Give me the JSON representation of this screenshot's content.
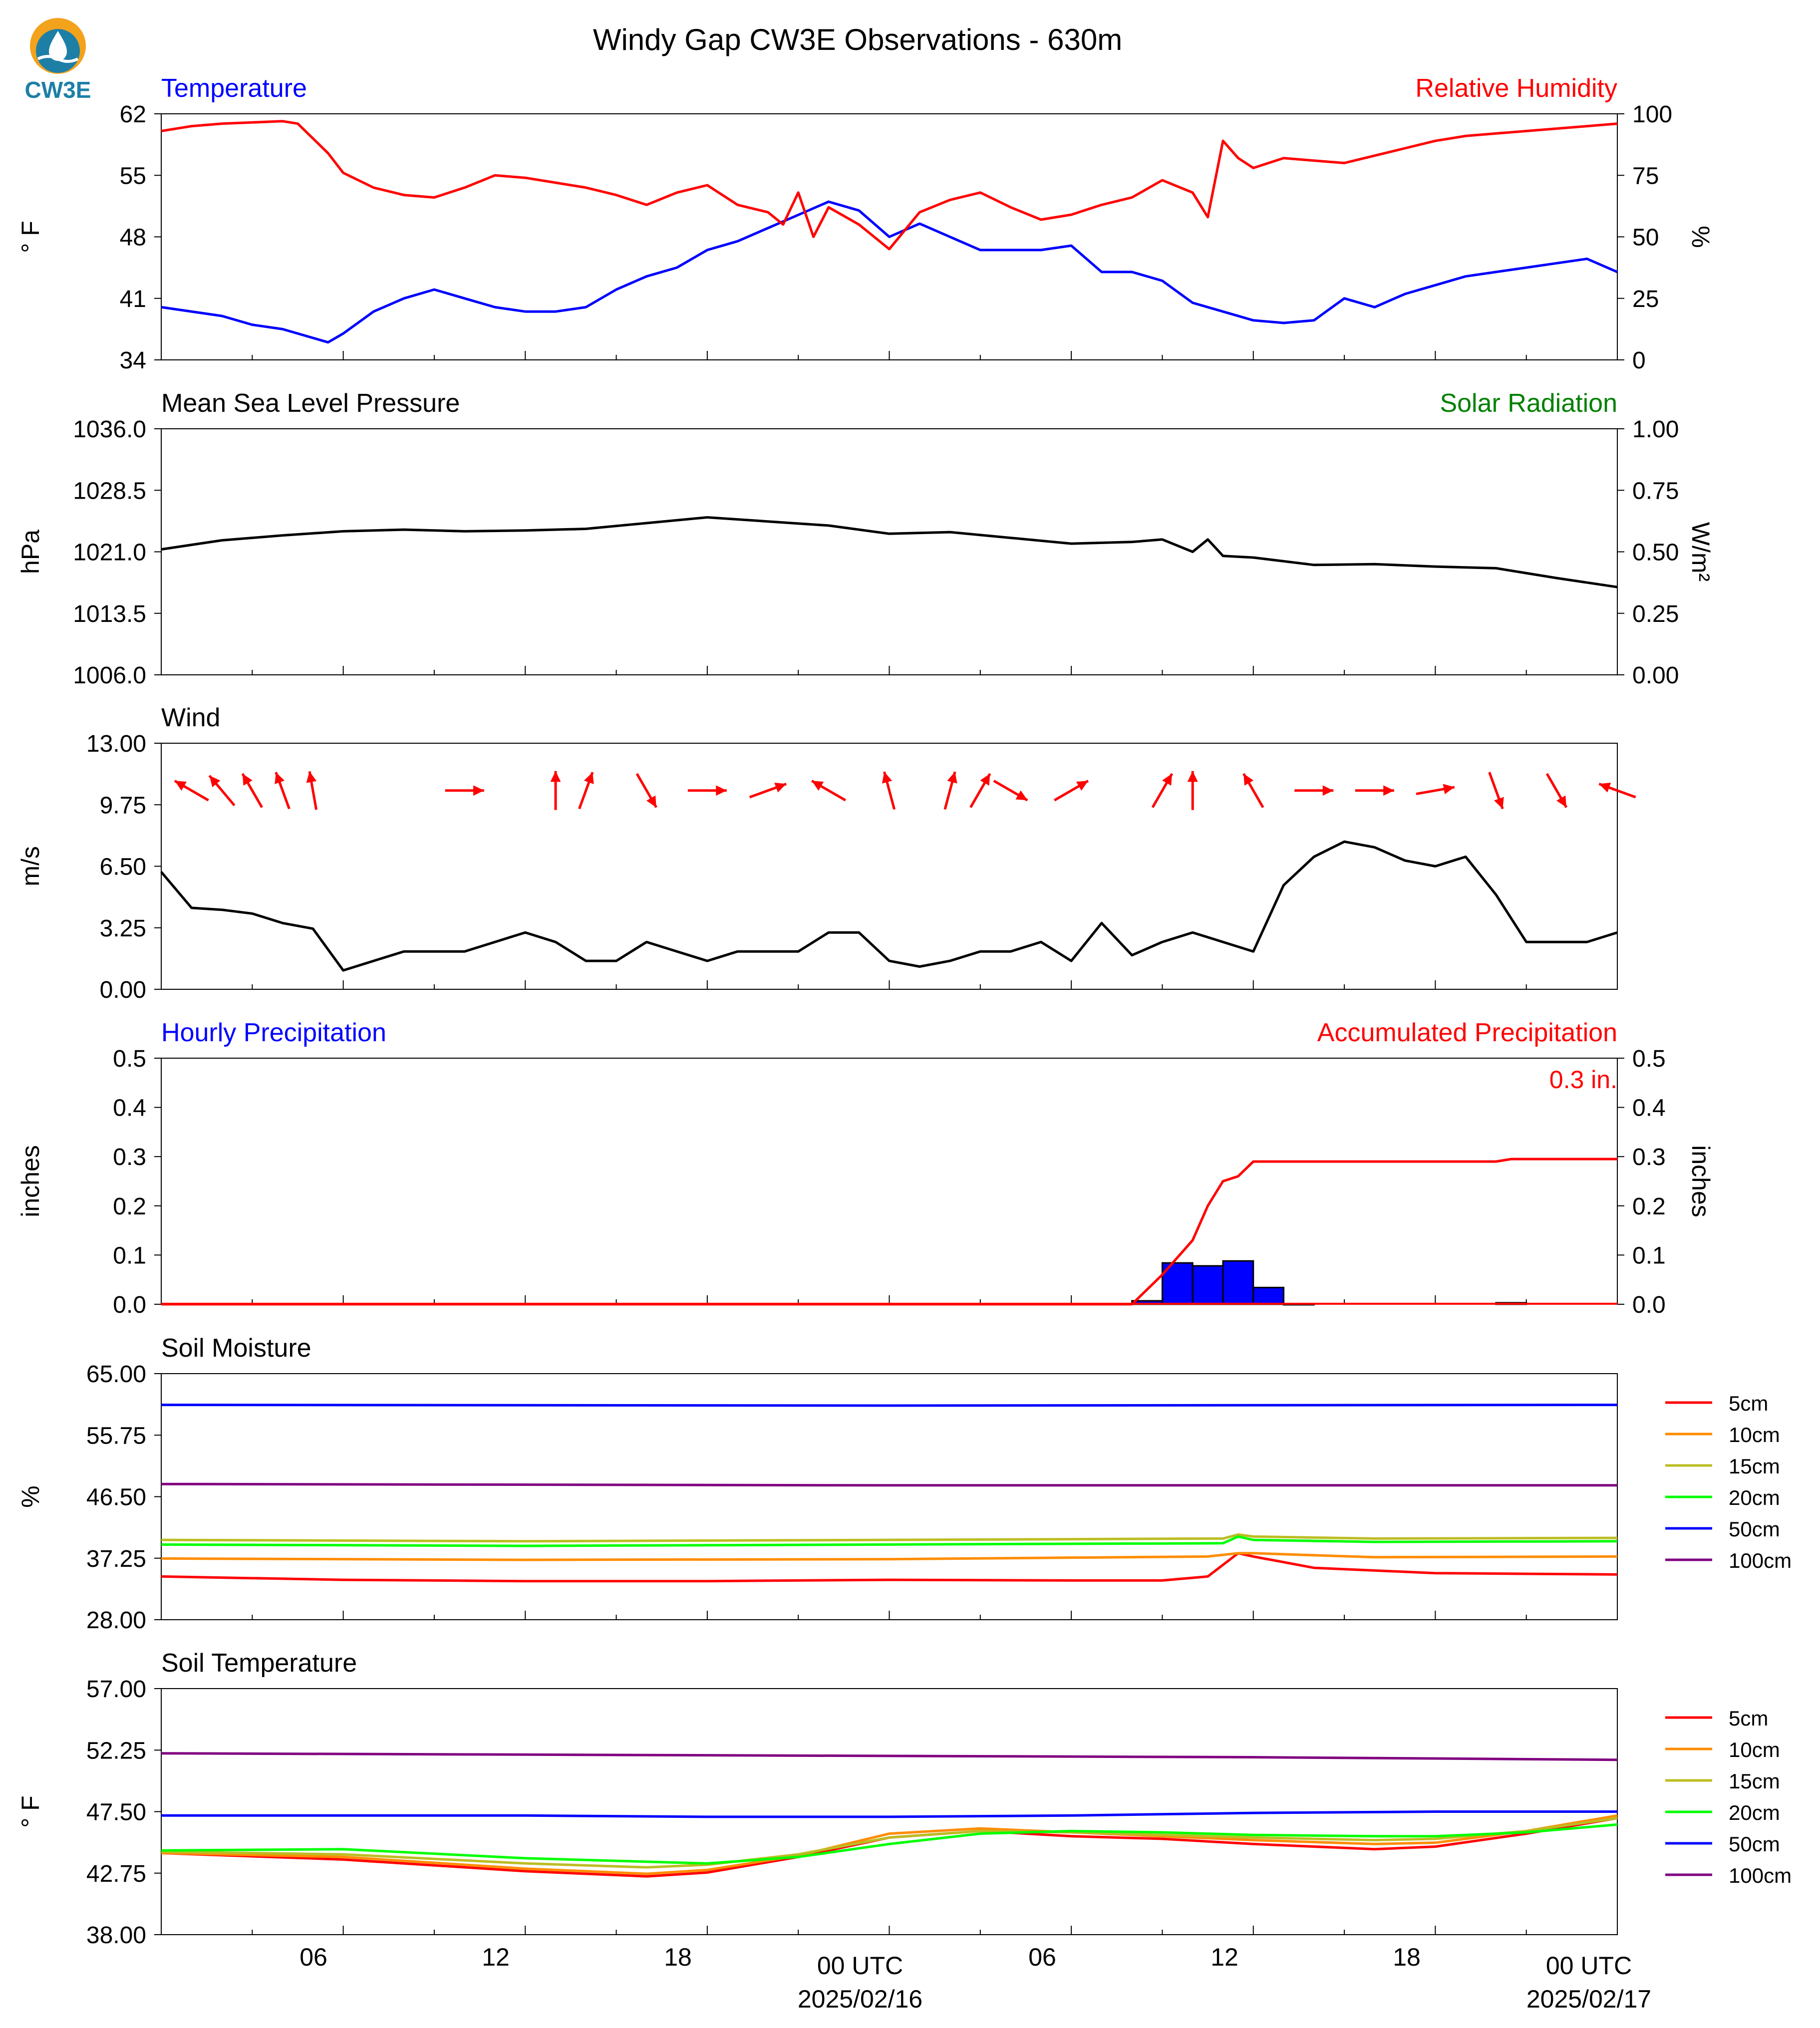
{
  "figure": {
    "title": "Windy Gap CW3E Observations - 630m",
    "logo_text": "CW3E"
  },
  "x_axis": {
    "tick_labels": [
      "06",
      "12",
      "18",
      "00 UTC",
      "06",
      "12",
      "18",
      "00 UTC"
    ],
    "date_labels": [
      "2025/02/16",
      "2025/02/17"
    ]
  },
  "colors": {
    "temperature": "#0000ff",
    "humidity": "#ff0000",
    "pressure": "#000000",
    "solar": "#008000",
    "wind": "#000000",
    "wind_arrows": "#ff0000",
    "hourly_bar": "#0000ff",
    "accumulated": "#ff0000",
    "logo": "#1d7fa6",
    "logo_accent": "#f3a21c",
    "5cm": "#ff0000",
    "10cm": "#ff8c00",
    "15cm": "#bcbd22",
    "20cm": "#00ff00",
    "50cm": "#0000ff",
    "100cm": "#800080"
  },
  "chart_data": [
    {
      "type": "line",
      "panel": "temperature-humidity",
      "title_left": "Temperature",
      "title_right": "Relative Humidity",
      "ylabel_left": "° F",
      "ylabel_right": "%",
      "ylim_left": [
        34,
        62
      ],
      "ylim_right": [
        0,
        100
      ],
      "yticks_left": [
        "62",
        "55",
        "48",
        "41",
        "34"
      ],
      "yticks_right": [
        "100",
        "75",
        "50",
        "25",
        "0"
      ],
      "series": [
        {
          "key": "temperature",
          "axis": "left",
          "x": [
            0,
            2,
            3,
            4,
            5,
            5.5,
            6,
            7,
            8,
            9,
            10,
            11,
            12,
            13,
            14,
            15,
            16,
            17,
            18,
            19,
            20,
            21,
            22,
            23,
            24,
            25,
            26,
            27,
            28,
            29,
            30,
            31,
            32,
            33,
            34,
            35,
            36,
            37,
            38,
            39,
            40,
            41,
            42,
            43,
            44,
            45,
            46,
            47,
            48
          ],
          "values": [
            40,
            39,
            38,
            37.5,
            36.5,
            36,
            37,
            39.5,
            41,
            42,
            41,
            40,
            39.5,
            39.5,
            40,
            42,
            43.5,
            44.5,
            46.5,
            47.5,
            49,
            50.5,
            52,
            51,
            48,
            49.5,
            48,
            46.5,
            46.5,
            46.5,
            47,
            44,
            44,
            43,
            40.5,
            39.5,
            38.5,
            38.2,
            38.5,
            41,
            40,
            41.5,
            42.5,
            43.5,
            44,
            44.5,
            45,
            45.5,
            44
          ]
        },
        {
          "key": "humidity",
          "axis": "right",
          "x": [
            0,
            1,
            2,
            3,
            4,
            4.5,
            5,
            5.5,
            6,
            7,
            8,
            9,
            10,
            11,
            12,
            13,
            14,
            15,
            16,
            17,
            18,
            19,
            20,
            20.5,
            21,
            21.5,
            22,
            23,
            24,
            25,
            26,
            27,
            28,
            29,
            30,
            31,
            32,
            33,
            34,
            34.5,
            35,
            35.5,
            36,
            37,
            38,
            39,
            40,
            41,
            42,
            43,
            44,
            45,
            46,
            47,
            48
          ],
          "values": [
            93,
            95,
            96,
            96.5,
            97,
            96,
            90,
            84,
            76,
            70,
            67,
            66,
            70,
            75,
            74,
            72,
            70,
            67,
            63,
            68,
            71,
            63,
            60,
            55,
            68,
            50,
            62,
            55,
            45,
            60,
            65,
            68,
            62,
            57,
            59,
            63,
            66,
            73,
            68,
            58,
            89,
            82,
            78,
            82,
            81,
            80,
            83,
            86,
            89,
            91,
            92,
            93,
            94,
            95,
            96
          ]
        }
      ]
    },
    {
      "type": "line",
      "panel": "pressure-solar",
      "title_left": "Mean Sea Level Pressure",
      "title_right": "Solar Radiation",
      "ylabel_left": "hPa",
      "ylabel_right": "W/m²",
      "ylim_left": [
        1006,
        1036
      ],
      "ylim_right": [
        0,
        1
      ],
      "yticks_left": [
        "1036.0",
        "1028.5",
        "1021.0",
        "1013.5",
        "1006.0"
      ],
      "yticks_right": [
        "1.00",
        "0.75",
        "0.50",
        "0.25",
        "0.00"
      ],
      "series": [
        {
          "key": "pressure",
          "axis": "left",
          "x": [
            0,
            2,
            4,
            6,
            8,
            10,
            12,
            14,
            16,
            18,
            20,
            22,
            24,
            26,
            28,
            30,
            32,
            33,
            34,
            34.5,
            35,
            36,
            38,
            40,
            42,
            44,
            46,
            48
          ],
          "values": [
            1021.3,
            1022.4,
            1023.0,
            1023.5,
            1023.7,
            1023.5,
            1023.6,
            1023.8,
            1024.5,
            1025.2,
            1024.7,
            1024.2,
            1023.2,
            1023.4,
            1022.7,
            1022.0,
            1022.2,
            1022.5,
            1021.0,
            1022.5,
            1020.5,
            1020.3,
            1019.4,
            1019.5,
            1019.2,
            1019.0,
            1017.8,
            1016.7
          ]
        }
      ]
    },
    {
      "type": "line",
      "panel": "wind",
      "title_left": "Wind",
      "ylabel_left": "m/s",
      "ylim_left": [
        0,
        13
      ],
      "yticks_left": [
        "13.00",
        "9.75",
        "6.50",
        "3.25",
        "0.00"
      ],
      "series": [
        {
          "key": "wind",
          "axis": "left",
          "x": [
            0,
            1,
            2,
            3,
            4,
            5,
            6,
            7,
            8,
            9,
            10,
            11,
            12,
            13,
            14,
            15,
            16,
            17,
            18,
            19,
            20,
            21,
            22,
            23,
            24,
            25,
            26,
            27,
            28,
            29,
            30,
            31,
            32,
            33,
            34,
            35,
            36,
            37,
            38,
            39,
            40,
            41,
            42,
            43,
            44,
            45,
            46,
            47,
            48
          ],
          "values": [
            6.2,
            4.3,
            4.2,
            4.0,
            3.5,
            3.2,
            1.0,
            1.5,
            2.0,
            2.0,
            2.0,
            2.5,
            3.0,
            2.5,
            1.5,
            1.5,
            2.5,
            2.0,
            1.5,
            2.0,
            2.0,
            2.0,
            3.0,
            3.0,
            1.5,
            1.2,
            1.5,
            2.0,
            2.0,
            2.5,
            1.5,
            3.5,
            1.8,
            2.5,
            3.0,
            2.5,
            2.0,
            5.5,
            7.0,
            7.8,
            7.5,
            6.8,
            6.5,
            7.0,
            5.0,
            2.5,
            2.5,
            2.5,
            3.0
          ]
        }
      ],
      "arrows": {
        "x": [
          1,
          2,
          3,
          4,
          5,
          10,
          13,
          14,
          16,
          18,
          20,
          22,
          24,
          26,
          27,
          28,
          30,
          33,
          34,
          36,
          38,
          40,
          42,
          44,
          46,
          48
        ],
        "direction_deg": [
          300,
          320,
          330,
          340,
          350,
          90,
          0,
          20,
          150,
          90,
          70,
          300,
          345,
          15,
          30,
          120,
          60,
          30,
          0,
          330,
          90,
          90,
          80,
          160,
          150,
          290
        ],
        "y": 10.5
      }
    },
    {
      "type": "bar",
      "panel": "precipitation",
      "title_left": "Hourly Precipitation",
      "title_right": "Accumulated Precipitation",
      "ylabel_left": "inches",
      "ylabel_right": "inches",
      "annotation": "0.3 in.",
      "ylim_left": [
        0,
        0.5
      ],
      "ylim_right": [
        0,
        0.5
      ],
      "yticks_left": [
        "0.5",
        "0.4",
        "0.3",
        "0.2",
        "0.1",
        "0.0"
      ],
      "yticks_right": [
        "0.5",
        "0.4",
        "0.3",
        "0.2",
        "0.1",
        "0.0"
      ],
      "bars": {
        "x": [
          32,
          33,
          34,
          35,
          36,
          37,
          44
        ],
        "values": [
          0.007,
          0.084,
          0.078,
          0.088,
          0.034,
          0.0,
          0.003
        ]
      },
      "series": [
        {
          "key": "accumulated",
          "axis": "right",
          "x": [
            0,
            32,
            33,
            34,
            34.5,
            35,
            35.5,
            36,
            37,
            40,
            44,
            44.5,
            48
          ],
          "values": [
            0,
            0,
            0.06,
            0.13,
            0.2,
            0.25,
            0.26,
            0.29,
            0.29,
            0.29,
            0.29,
            0.295,
            0.295
          ]
        }
      ]
    },
    {
      "type": "line",
      "panel": "soil-moisture",
      "title_left": "Soil Moisture",
      "ylabel_left": "%",
      "ylim_left": [
        28,
        65
      ],
      "yticks_left": [
        "65.00",
        "55.75",
        "46.50",
        "37.25",
        "28.00"
      ],
      "legend": [
        "5cm",
        "10cm",
        "15cm",
        "20cm",
        "50cm",
        "100cm"
      ],
      "series": [
        {
          "key": "5cm",
          "x": [
            0,
            6,
            12,
            18,
            24,
            30,
            33,
            34.5,
            35.5,
            36,
            38,
            42,
            48
          ],
          "values": [
            34.5,
            34.0,
            33.8,
            33.8,
            34.0,
            33.9,
            33.9,
            34.5,
            38.0,
            37.5,
            35.8,
            35.0,
            34.8
          ]
        },
        {
          "key": "10cm",
          "x": [
            0,
            12,
            24,
            34.5,
            35.5,
            36,
            40,
            48
          ],
          "values": [
            37.2,
            37.0,
            37.1,
            37.5,
            38.0,
            38.0,
            37.4,
            37.5
          ]
        },
        {
          "key": "15cm",
          "x": [
            0,
            12,
            24,
            35,
            35.5,
            36,
            40,
            48
          ],
          "values": [
            40.0,
            39.8,
            40.0,
            40.2,
            40.8,
            40.5,
            40.2,
            40.3
          ]
        },
        {
          "key": "20cm",
          "x": [
            0,
            12,
            24,
            35,
            35.5,
            36,
            40,
            48
          ],
          "values": [
            39.3,
            39.1,
            39.3,
            39.5,
            40.5,
            40.0,
            39.7,
            39.8
          ]
        },
        {
          "key": "50cm",
          "x": [
            0,
            24,
            48
          ],
          "values": [
            60.3,
            60.2,
            60.3
          ]
        },
        {
          "key": "100cm",
          "x": [
            0,
            24,
            48
          ],
          "values": [
            48.4,
            48.2,
            48.2
          ]
        }
      ]
    },
    {
      "type": "line",
      "panel": "soil-temperature",
      "title_left": "Soil Temperature",
      "ylabel_left": "° F",
      "ylim_left": [
        38,
        57
      ],
      "yticks_left": [
        "57.00",
        "52.25",
        "47.50",
        "42.75",
        "38.00"
      ],
      "legend": [
        "5cm",
        "10cm",
        "15cm",
        "20cm",
        "50cm",
        "100cm"
      ],
      "series": [
        {
          "key": "5cm",
          "x": [
            0,
            6,
            12,
            16,
            18,
            21,
            24,
            27,
            30,
            33,
            36,
            40,
            42,
            45,
            48
          ],
          "values": [
            44.3,
            43.8,
            42.9,
            42.5,
            42.8,
            44.0,
            45.5,
            46.0,
            45.6,
            45.4,
            45.0,
            44.6,
            44.8,
            45.8,
            47.0
          ]
        },
        {
          "key": "10cm",
          "x": [
            0,
            6,
            12,
            16,
            18,
            21,
            24,
            27,
            30,
            33,
            36,
            40,
            42,
            45,
            48
          ],
          "values": [
            44.3,
            44.0,
            43.1,
            42.7,
            43.0,
            44.1,
            45.8,
            46.2,
            45.9,
            45.6,
            45.3,
            45.0,
            45.1,
            46.0,
            47.2
          ]
        },
        {
          "key": "15cm",
          "x": [
            0,
            6,
            12,
            16,
            18,
            21,
            24,
            27,
            30,
            33,
            36,
            40,
            42,
            45,
            48
          ],
          "values": [
            44.4,
            44.2,
            43.5,
            43.2,
            43.4,
            44.2,
            45.5,
            46.0,
            45.9,
            45.7,
            45.5,
            45.3,
            45.4,
            46.0,
            47.0
          ]
        },
        {
          "key": "20cm",
          "x": [
            0,
            6,
            12,
            18,
            21,
            24,
            27,
            30,
            33,
            36,
            40,
            42,
            45,
            48
          ],
          "values": [
            44.5,
            44.6,
            43.9,
            43.5,
            44.0,
            45.0,
            45.8,
            46.0,
            45.9,
            45.7,
            45.6,
            45.6,
            45.9,
            46.5
          ]
        },
        {
          "key": "50cm",
          "x": [
            0,
            6,
            12,
            18,
            24,
            30,
            36,
            42,
            48
          ],
          "values": [
            47.2,
            47.2,
            47.2,
            47.1,
            47.1,
            47.2,
            47.4,
            47.5,
            47.5
          ]
        },
        {
          "key": "100cm",
          "x": [
            0,
            12,
            24,
            36,
            48
          ],
          "values": [
            52.0,
            51.9,
            51.8,
            51.7,
            51.5
          ]
        }
      ]
    }
  ]
}
